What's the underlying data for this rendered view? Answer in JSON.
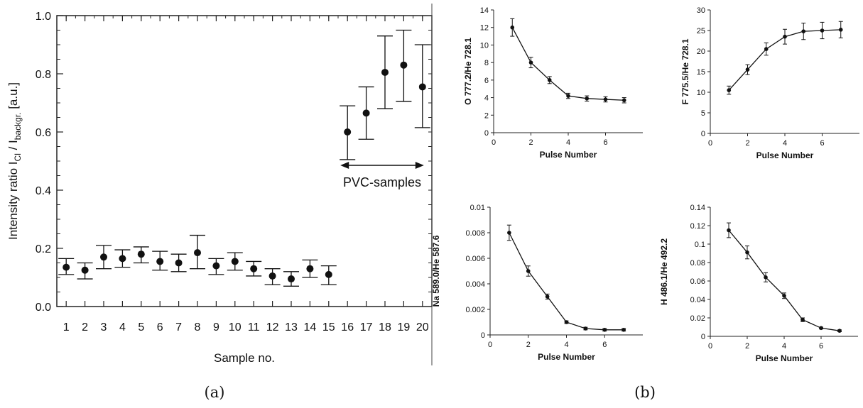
{
  "chart_data": [
    {
      "type": "scatter",
      "panel": "(a)",
      "ylabel": "Intensity ratio I_Cl / I_backgr. [a.u.]",
      "ylabel_parts": {
        "main": "Intensity ratio I",
        "sub1": "Cl",
        "mid": " / I",
        "sub2": "backgr.",
        "end": " [a.u.]"
      },
      "xlabel": "Sample no.",
      "ylim": [
        0.0,
        1.0
      ],
      "xlim": [
        0.5,
        20.5
      ],
      "yticks": [
        "0.0",
        "0.2",
        "0.4",
        "0.6",
        "0.8",
        "1.0"
      ],
      "xticks": [
        "1",
        "2",
        "3",
        "4",
        "5",
        "6",
        "7",
        "8",
        "9",
        "10",
        "11",
        "12",
        "13",
        "14",
        "15",
        "16",
        "17",
        "18",
        "19",
        "20"
      ],
      "annotation": "PVC-samples",
      "annotation_range": [
        16,
        20
      ],
      "points": [
        {
          "x": 1,
          "y": 0.135,
          "lo": 0.11,
          "hi": 0.165
        },
        {
          "x": 2,
          "y": 0.125,
          "lo": 0.095,
          "hi": 0.15
        },
        {
          "x": 3,
          "y": 0.17,
          "lo": 0.13,
          "hi": 0.21
        },
        {
          "x": 4,
          "y": 0.165,
          "lo": 0.135,
          "hi": 0.195
        },
        {
          "x": 5,
          "y": 0.18,
          "lo": 0.15,
          "hi": 0.205
        },
        {
          "x": 6,
          "y": 0.155,
          "lo": 0.125,
          "hi": 0.19
        },
        {
          "x": 7,
          "y": 0.15,
          "lo": 0.12,
          "hi": 0.18
        },
        {
          "x": 8,
          "y": 0.185,
          "lo": 0.13,
          "hi": 0.245
        },
        {
          "x": 9,
          "y": 0.14,
          "lo": 0.11,
          "hi": 0.165
        },
        {
          "x": 10,
          "y": 0.155,
          "lo": 0.125,
          "hi": 0.185
        },
        {
          "x": 11,
          "y": 0.13,
          "lo": 0.105,
          "hi": 0.155
        },
        {
          "x": 12,
          "y": 0.105,
          "lo": 0.075,
          "hi": 0.13
        },
        {
          "x": 13,
          "y": 0.095,
          "lo": 0.07,
          "hi": 0.12
        },
        {
          "x": 14,
          "y": 0.13,
          "lo": 0.1,
          "hi": 0.16
        },
        {
          "x": 15,
          "y": 0.11,
          "lo": 0.075,
          "hi": 0.14
        },
        {
          "x": 16,
          "y": 0.6,
          "lo": 0.505,
          "hi": 0.69
        },
        {
          "x": 17,
          "y": 0.665,
          "lo": 0.575,
          "hi": 0.755
        },
        {
          "x": 18,
          "y": 0.805,
          "lo": 0.68,
          "hi": 0.93
        },
        {
          "x": 19,
          "y": 0.83,
          "lo": 0.705,
          "hi": 0.95
        },
        {
          "x": 20,
          "y": 0.755,
          "lo": 0.615,
          "hi": 0.9
        }
      ]
    },
    {
      "type": "line",
      "panel": "(b) top-left",
      "ylabel": "O 777.2/He 728.1",
      "xlabel": "Pulse Number",
      "xlim": [
        0,
        8
      ],
      "ylim": [
        0,
        14
      ],
      "xticks": [
        0,
        2,
        4,
        6
      ],
      "yticks": [
        0,
        2,
        4,
        6,
        8,
        10,
        12,
        14
      ],
      "points": [
        {
          "x": 1,
          "y": 12.0,
          "err": 1.0
        },
        {
          "x": 2,
          "y": 8.0,
          "err": 0.6
        },
        {
          "x": 3,
          "y": 6.0,
          "err": 0.4
        },
        {
          "x": 4,
          "y": 4.2,
          "err": 0.3
        },
        {
          "x": 5,
          "y": 3.9,
          "err": 0.3
        },
        {
          "x": 6,
          "y": 3.8,
          "err": 0.3
        },
        {
          "x": 7,
          "y": 3.7,
          "err": 0.3
        }
      ]
    },
    {
      "type": "line",
      "panel": "(b) top-right",
      "ylabel": "F 775.5/He 728.1",
      "xlabel": "Pulse Number",
      "xlim": [
        0,
        8
      ],
      "ylim": [
        0,
        30
      ],
      "xticks": [
        0,
        2,
        4,
        6
      ],
      "yticks": [
        0,
        5,
        10,
        15,
        20,
        25,
        30
      ],
      "points": [
        {
          "x": 1,
          "y": 10.5,
          "err": 1.0
        },
        {
          "x": 2,
          "y": 15.5,
          "err": 1.2
        },
        {
          "x": 3,
          "y": 20.5,
          "err": 1.5
        },
        {
          "x": 4,
          "y": 23.5,
          "err": 1.8
        },
        {
          "x": 5,
          "y": 24.8,
          "err": 2.0
        },
        {
          "x": 6,
          "y": 25.0,
          "err": 2.0
        },
        {
          "x": 7,
          "y": 25.2,
          "err": 2.0
        }
      ]
    },
    {
      "type": "line",
      "panel": "(b) bottom-left",
      "ylabel": "Na 589.0/He 587.6",
      "xlabel": "Pulse Number",
      "xlim": [
        0,
        8
      ],
      "ylim": [
        0,
        0.01
      ],
      "xticks": [
        0,
        2,
        4,
        6
      ],
      "yticks": [
        "0",
        "0.002",
        "0.004",
        "0.006",
        "0.008",
        "0.01"
      ],
      "points": [
        {
          "x": 1,
          "y": 0.008,
          "err": 0.0006
        },
        {
          "x": 2,
          "y": 0.005,
          "err": 0.0004
        },
        {
          "x": 3,
          "y": 0.003,
          "err": 0.0002
        },
        {
          "x": 4,
          "y": 0.001,
          "err": 0.0001
        },
        {
          "x": 5,
          "y": 0.0005,
          "err": 0.0001
        },
        {
          "x": 6,
          "y": 0.0004,
          "err": 0.0001
        },
        {
          "x": 7,
          "y": 0.0004,
          "err": 0.0001
        }
      ]
    },
    {
      "type": "line",
      "panel": "(b) bottom-right",
      "ylabel": "H 486.1/He 492.2",
      "xlabel": "Pulse Number",
      "xlim": [
        0,
        8
      ],
      "ylim": [
        0,
        0.14
      ],
      "xticks": [
        0,
        2,
        4,
        6
      ],
      "yticks": [
        "0",
        "0.02",
        "0.04",
        "0.06",
        "0.08",
        "0.1",
        "0.12",
        "0.14"
      ],
      "points": [
        {
          "x": 1,
          "y": 0.115,
          "err": 0.008
        },
        {
          "x": 2,
          "y": 0.091,
          "err": 0.007
        },
        {
          "x": 3,
          "y": 0.064,
          "err": 0.005
        },
        {
          "x": 4,
          "y": 0.044,
          "err": 0.003
        },
        {
          "x": 5,
          "y": 0.018,
          "err": 0.002
        },
        {
          "x": 6,
          "y": 0.009,
          "err": 0.001
        },
        {
          "x": 7,
          "y": 0.006,
          "err": 0.001
        }
      ]
    }
  ],
  "captions": {
    "a": "(a)",
    "b": "(b)"
  }
}
